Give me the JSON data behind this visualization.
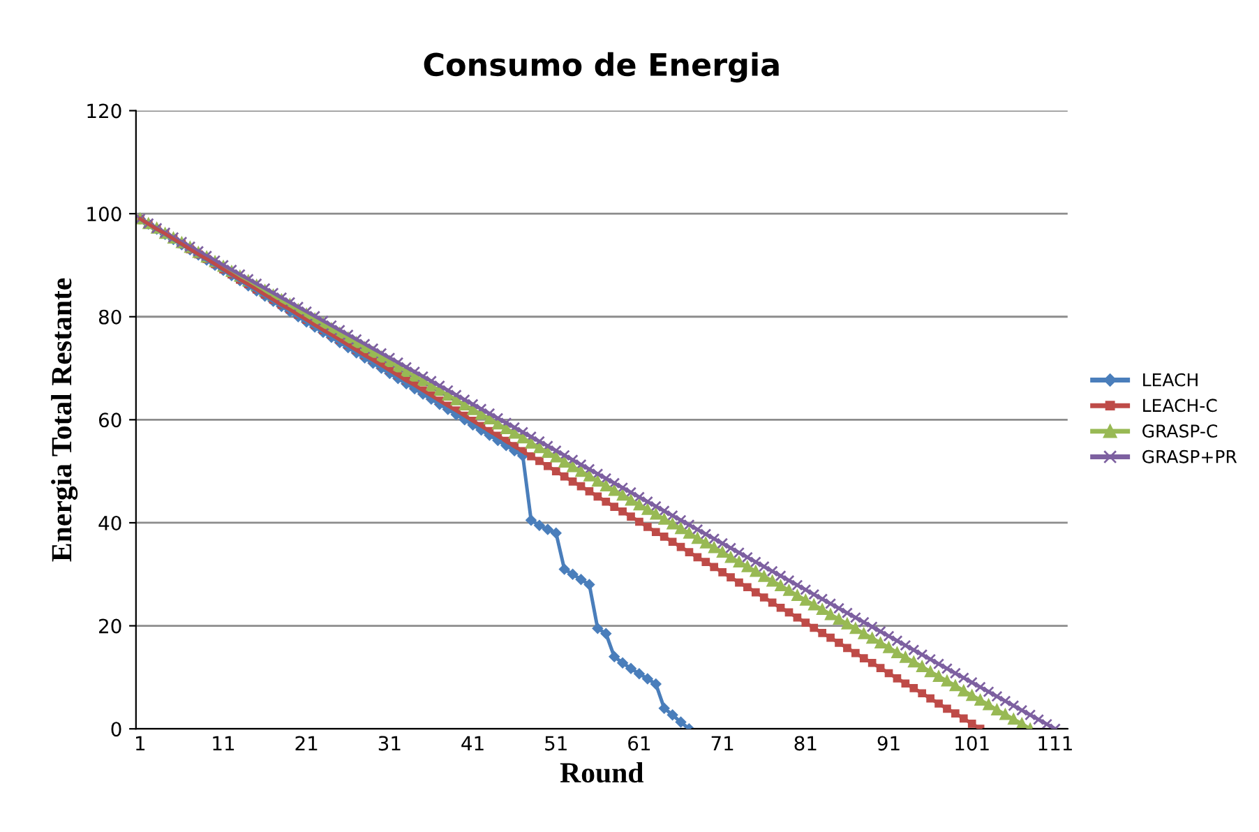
{
  "chart_data": {
    "type": "line",
    "title": "Consumo de Energia",
    "xlabel": "Round",
    "ylabel": "Energia Total Restante",
    "categories": [
      "1",
      null,
      null,
      null,
      null,
      null,
      null,
      null,
      null,
      null,
      "11",
      null,
      null,
      null,
      null,
      null,
      null,
      null,
      null,
      null,
      "21",
      null,
      null,
      null,
      null,
      null,
      null,
      null,
      null,
      null,
      "31",
      null,
      null,
      null,
      null,
      null,
      null,
      null,
      null,
      null,
      "41",
      null,
      null,
      null,
      null,
      null,
      null,
      null,
      null,
      null,
      "51",
      null,
      null,
      null,
      null,
      null,
      null,
      null,
      null,
      null,
      "61",
      null,
      null,
      null,
      null,
      null,
      null,
      null,
      null,
      null,
      "71",
      null,
      null,
      null,
      null,
      null,
      null,
      null,
      null,
      null,
      "81",
      null,
      null,
      null,
      null,
      null,
      null,
      null,
      null,
      null,
      "91",
      null,
      null,
      null,
      null,
      null,
      null,
      null,
      null,
      null,
      "101",
      null,
      null,
      null,
      null,
      null,
      null,
      null,
      null,
      null,
      "111",
      null
    ],
    "ylim": [
      0,
      120
    ],
    "yticks": [
      0,
      20,
      40,
      60,
      80,
      100,
      120
    ],
    "grid": "y",
    "legend": "right",
    "series": [
      {
        "name": "LEACH",
        "color": "#4a7ebb",
        "marker": "diamond",
        "values": [
          99,
          98,
          97,
          96,
          95,
          94,
          93,
          92,
          91,
          90,
          89,
          88,
          87,
          86,
          85,
          84,
          83,
          82,
          81,
          80,
          79,
          78,
          77,
          76,
          75,
          74,
          73,
          72,
          71,
          70,
          69,
          68,
          67,
          66,
          65,
          64,
          63,
          62,
          61,
          60,
          59,
          58,
          57,
          56,
          55,
          54,
          53,
          40.5,
          39.5,
          38.7,
          38,
          31,
          30,
          29,
          28,
          19.5,
          18.5,
          14,
          12.8,
          11.7,
          10.7,
          9.7,
          8.7,
          4,
          2.7,
          1.3,
          0,
          null,
          null,
          null,
          null,
          null,
          null,
          null,
          null,
          null,
          null,
          null,
          null,
          null,
          null,
          null,
          null,
          null,
          null,
          null,
          null,
          null,
          null,
          null,
          null,
          null,
          null,
          null,
          null,
          null,
          null,
          null,
          null,
          null,
          null,
          null,
          null,
          null,
          null,
          null,
          null,
          null,
          null,
          null,
          null,
          null
        ]
      },
      {
        "name": "LEACH-C",
        "color": "#be4b48",
        "marker": "square",
        "values": [
          99,
          98,
          97,
          96.1,
          95.1,
          94.1,
          93.1,
          92.1,
          91.2,
          90.2,
          89.2,
          88.2,
          87.2,
          86.3,
          85.3,
          84.3,
          83.3,
          82.3,
          81.4,
          80.4,
          79.4,
          78.4,
          77.4,
          76.5,
          75.5,
          74.5,
          73.5,
          72.5,
          71.6,
          70.6,
          69.6,
          68.6,
          67.6,
          66.7,
          65.7,
          64.7,
          63.7,
          62.7,
          61.8,
          60.8,
          59.8,
          58.8,
          57.8,
          56.9,
          55.9,
          54.9,
          53.9,
          52.9,
          52,
          51,
          50,
          49,
          48,
          47.1,
          46.1,
          45.1,
          44.1,
          43.1,
          42.2,
          41.2,
          40.2,
          39.2,
          38.2,
          37.3,
          36.3,
          35.3,
          34.3,
          33.3,
          32.4,
          31.4,
          30.4,
          29.4,
          28.4,
          27.5,
          26.5,
          25.5,
          24.5,
          23.5,
          22.6,
          21.6,
          20.6,
          19.6,
          18.6,
          17.7,
          16.7,
          15.7,
          14.7,
          13.7,
          12.8,
          11.8,
          10.8,
          9.8,
          8.8,
          7.9,
          6.9,
          5.9,
          4.9,
          3.9,
          3,
          2,
          1,
          0,
          null,
          null,
          null,
          null,
          null,
          null,
          null,
          null,
          null,
          null
        ]
      },
      {
        "name": "GRASP-C",
        "color": "#98b954",
        "marker": "triangle",
        "values": [
          99,
          98.1,
          97.2,
          96.2,
          95.3,
          94.4,
          93.5,
          92.5,
          91.6,
          90.7,
          89.8,
          88.8,
          87.9,
          87,
          86.1,
          85.1,
          84.2,
          83.3,
          82.4,
          81.4,
          80.5,
          79.6,
          78.7,
          77.7,
          76.8,
          75.9,
          75,
          74,
          73.1,
          72.2,
          71.3,
          70.3,
          69.4,
          68.5,
          67.6,
          66.6,
          65.7,
          64.8,
          63.9,
          62.9,
          62,
          61.1,
          60.2,
          59.2,
          58.3,
          57.4,
          56.5,
          55.5,
          54.6,
          53.7,
          52.8,
          51.8,
          50.9,
          50,
          49.1,
          48.1,
          47.2,
          46.3,
          45.4,
          44.4,
          43.5,
          42.6,
          41.7,
          40.7,
          39.8,
          38.9,
          38,
          37,
          36.1,
          35.2,
          34.3,
          33.3,
          32.4,
          31.5,
          30.6,
          29.6,
          28.7,
          27.8,
          26.9,
          25.9,
          25,
          24.1,
          23.2,
          22.2,
          21.3,
          20.4,
          19.5,
          18.5,
          17.6,
          16.7,
          15.8,
          14.8,
          13.9,
          13,
          12.1,
          11.1,
          10.2,
          9.3,
          8.4,
          7.4,
          6.5,
          5.6,
          4.7,
          3.7,
          2.8,
          1.9,
          1,
          0,
          null,
          null,
          null,
          null
        ]
      },
      {
        "name": "GRASP+PR",
        "color": "#7d60a0",
        "marker": "cross",
        "values": [
          99,
          98.1,
          97.2,
          96.3,
          95.4,
          94.5,
          93.6,
          92.7,
          91.8,
          90.9,
          90,
          89.1,
          88.2,
          87.3,
          86.4,
          85.5,
          84.6,
          83.7,
          82.8,
          81.9,
          81,
          80.1,
          79.2,
          78.3,
          77.4,
          76.5,
          75.6,
          74.7,
          73.8,
          72.9,
          72,
          71.1,
          70.2,
          69.3,
          68.4,
          67.5,
          66.6,
          65.7,
          64.8,
          63.9,
          63,
          62.1,
          61.2,
          60.3,
          59.4,
          58.5,
          57.6,
          56.7,
          55.8,
          54.9,
          54,
          53.1,
          52.2,
          51.3,
          50.4,
          49.5,
          48.6,
          47.7,
          46.8,
          45.9,
          45,
          44.1,
          43.2,
          42.3,
          41.4,
          40.5,
          39.6,
          38.7,
          37.8,
          36.9,
          36,
          35.1,
          34.2,
          33.3,
          32.4,
          31.5,
          30.6,
          29.7,
          28.8,
          27.9,
          27,
          26.1,
          25.2,
          24.3,
          23.4,
          22.5,
          21.6,
          20.7,
          19.8,
          18.9,
          18,
          17.1,
          16.2,
          15.3,
          14.4,
          13.5,
          12.6,
          11.7,
          10.8,
          9.9,
          9,
          8.1,
          7.2,
          6.3,
          5.4,
          4.5,
          3.6,
          2.7,
          1.8,
          0.9,
          0,
          null
        ]
      }
    ]
  }
}
